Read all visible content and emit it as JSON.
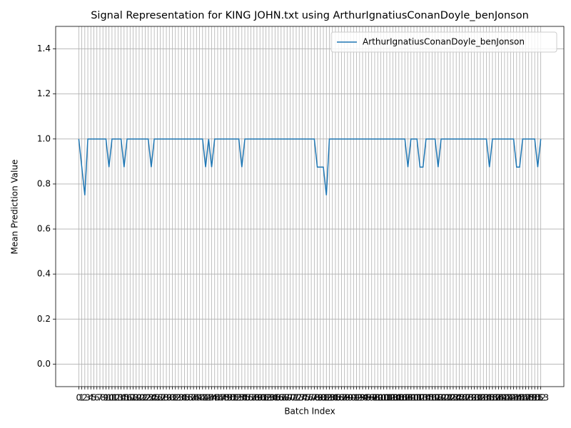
{
  "chart_data": {
    "type": "line",
    "title": "Signal Representation for KING JOHN.txt using ArthurIgnatiusConanDoyle_benJonson",
    "x_label": "Batch Index",
    "y_label": "Mean Prediction Value",
    "x": [
      0,
      1,
      2,
      3,
      4,
      5,
      6,
      7,
      8,
      9,
      10,
      11,
      12,
      13,
      14,
      15,
      16,
      17,
      18,
      19,
      20,
      21,
      22,
      23,
      24,
      25,
      26,
      27,
      28,
      29,
      30,
      31,
      32,
      33,
      34,
      35,
      36,
      37,
      38,
      39,
      40,
      41,
      42,
      43,
      44,
      45,
      46,
      47,
      48,
      49,
      50,
      51,
      52,
      53,
      54,
      55,
      56,
      57,
      58,
      59,
      60,
      61,
      62,
      63,
      64,
      65,
      66,
      67,
      68,
      69,
      70,
      71,
      72,
      73,
      74,
      75,
      76,
      77,
      78,
      79,
      80,
      81,
      82,
      83,
      84,
      85,
      86,
      87,
      88,
      89,
      90,
      91,
      92,
      93,
      94,
      95,
      96,
      97,
      98,
      99,
      100,
      101,
      102,
      103,
      104,
      105,
      106,
      107,
      108,
      109,
      110,
      111,
      112,
      113,
      114,
      115,
      116,
      117,
      118,
      119,
      120,
      121,
      122,
      123,
      124,
      125,
      126,
      127,
      128,
      129,
      130,
      131,
      132,
      133,
      134,
      135,
      136,
      137,
      138,
      139,
      140,
      141,
      142,
      143,
      144,
      145,
      146,
      147,
      148,
      149,
      150,
      151,
      152,
      153
    ],
    "series": [
      {
        "name": "ArthurIgnatiusConanDoyle_benJonson",
        "color": "#1f77b4",
        "values": [
          1,
          0.875,
          0.75,
          1,
          1,
          1,
          1,
          1,
          1,
          1,
          0.875,
          1,
          1,
          1,
          1,
          0.875,
          1,
          1,
          1,
          1,
          1,
          1,
          1,
          1,
          0.875,
          1,
          1,
          1,
          1,
          1,
          1,
          1,
          1,
          1,
          1,
          1,
          1,
          1,
          1,
          1,
          1,
          1,
          0.875,
          1,
          0.875,
          1,
          1,
          1,
          1,
          1,
          1,
          1,
          1,
          1,
          0.875,
          1,
          1,
          1,
          1,
          1,
          1,
          1,
          1,
          1,
          1,
          1,
          1,
          1,
          1,
          1,
          1,
          1,
          1,
          1,
          1,
          1,
          1,
          1,
          1,
          0.875,
          0.875,
          0.875,
          0.75,
          1,
          1,
          1,
          1,
          1,
          1,
          1,
          1,
          1,
          1,
          1,
          1,
          1,
          1,
          1,
          1,
          1,
          1,
          1,
          1,
          1,
          1,
          1,
          1,
          1,
          1,
          0.875,
          1,
          1,
          1,
          0.875,
          0.875,
          1,
          1,
          1,
          1,
          0.875,
          1,
          1,
          1,
          1,
          1,
          1,
          1,
          1,
          1,
          1,
          1,
          1,
          1,
          1,
          1,
          1,
          0.875,
          1,
          1,
          1,
          1,
          1,
          1,
          1,
          1,
          0.875,
          0.875,
          1,
          1,
          1,
          1,
          1,
          0.875,
          1
        ]
      }
    ],
    "xlim": [
      -7.65,
      160.65
    ],
    "xticks": [
      0,
      1,
      2,
      3,
      4,
      5,
      6,
      7,
      8,
      9,
      10,
      11,
      12,
      13,
      14,
      15,
      16,
      17,
      18,
      19,
      20,
      21,
      22,
      23,
      24,
      25,
      26,
      27,
      28,
      29,
      30,
      31,
      32,
      33,
      34,
      35,
      36,
      37,
      38,
      39,
      40,
      41,
      42,
      43,
      44,
      45,
      46,
      47,
      48,
      49,
      50,
      51,
      52,
      53,
      54,
      55,
      56,
      57,
      58,
      59,
      60,
      61,
      62,
      63,
      64,
      65,
      66,
      67,
      68,
      69,
      70,
      71,
      72,
      73,
      74,
      75,
      76,
      77,
      78,
      79,
      80,
      81,
      82,
      83,
      84,
      85,
      86,
      87,
      88,
      89,
      90,
      91,
      92,
      93,
      94,
      95,
      96,
      97,
      98,
      99,
      100,
      101,
      102,
      103,
      104,
      105,
      106,
      107,
      108,
      109,
      110,
      111,
      112,
      113,
      114,
      115,
      116,
      117,
      118,
      119,
      120,
      121,
      122,
      123,
      124,
      125,
      126,
      127,
      128,
      129,
      130,
      131,
      132,
      133,
      134,
      135,
      136,
      137,
      138,
      139,
      140,
      141,
      142,
      143,
      144,
      145,
      146,
      147,
      148,
      149,
      150,
      151,
      152,
      153
    ],
    "ylim": [
      -0.1,
      1.5
    ],
    "yticks": [
      {
        "value": 0,
        "label": "0.0"
      },
      0.2,
      0.4,
      0.6,
      0.8,
      {
        "value": 1,
        "label": "1.0"
      },
      1.2,
      1.4
    ],
    "grid": true,
    "legend": "upper right"
  }
}
